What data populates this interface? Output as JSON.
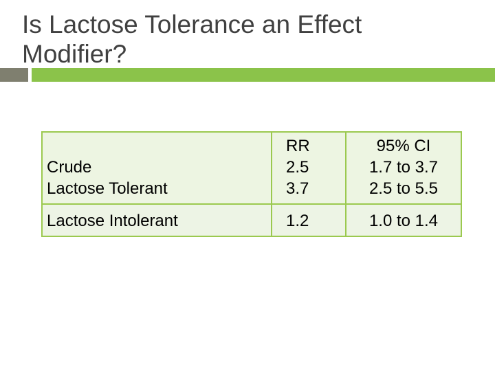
{
  "slide": {
    "title": "Is Lactose Tolerance an Effect Modifier?"
  },
  "table": {
    "header": {
      "label": "",
      "rr": "RR",
      "ci": "95% CI"
    },
    "rows": [
      {
        "labels": [
          "Crude",
          "Lactose Tolerant"
        ],
        "rr": [
          "2.5",
          "3.7"
        ],
        "ci": [
          "1.7 to 3.7",
          "2.5 to 5.5"
        ]
      },
      {
        "labels": [
          "Lactose Intolerant"
        ],
        "rr": [
          "1.2"
        ],
        "ci": [
          "1.0 to 1.4"
        ]
      }
    ]
  }
}
